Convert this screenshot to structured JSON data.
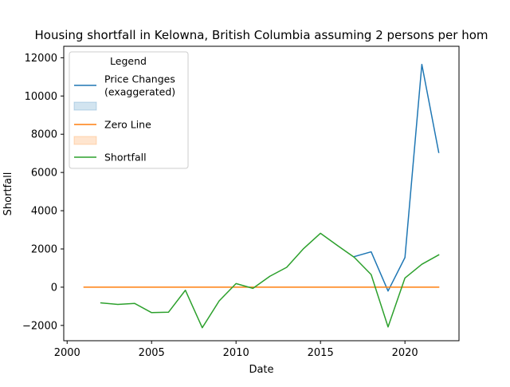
{
  "chart_data": {
    "type": "line",
    "title": "Housing shortfall in Kelowna, British Columbia assuming 2 persons per hom",
    "xlabel": "Date",
    "ylabel": "Shortfall",
    "xlim": [
      1999.8,
      2023.2
    ],
    "ylim": [
      -2800,
      12600
    ],
    "x_ticks": [
      2000,
      2005,
      2010,
      2015,
      2020
    ],
    "y_ticks": [
      -2000,
      0,
      2000,
      4000,
      6000,
      8000,
      10000,
      12000
    ],
    "grid": false,
    "legend": {
      "title": "Legend",
      "placement": "top-left",
      "entries": [
        {
          "kind": "line",
          "label_lines": [
            "Price Changes",
            "(exaggerated)"
          ],
          "color": "#1f77b4"
        },
        {
          "kind": "patch",
          "label_lines": [],
          "color": "#1f77b4"
        },
        {
          "kind": "line",
          "label_lines": [
            "Zero Line"
          ],
          "color": "#ff7f0e"
        },
        {
          "kind": "patch",
          "label_lines": [],
          "color": "#ff7f0e"
        },
        {
          "kind": "line",
          "label_lines": [
            "Shortfall"
          ],
          "color": "#2ca02c"
        }
      ]
    },
    "series": [
      {
        "name": "Price Changes (exaggerated)",
        "color": "#1f77b4",
        "x": [
          2017,
          2018,
          2019,
          2020,
          2021,
          2022
        ],
        "y": [
          1600,
          1850,
          -200,
          1550,
          11650,
          7050
        ]
      },
      {
        "name": "Zero Line",
        "color": "#ff7f0e",
        "x": [
          2001,
          2022
        ],
        "y": [
          0,
          0
        ]
      },
      {
        "name": "Shortfall",
        "color": "#2ca02c",
        "x": [
          2002,
          2003,
          2004,
          2005,
          2006,
          2007,
          2008,
          2009,
          2010,
          2011,
          2012,
          2013,
          2014,
          2015,
          2016,
          2017,
          2018,
          2019,
          2020,
          2021,
          2022
        ],
        "y": [
          -820,
          -900,
          -850,
          -1330,
          -1310,
          -160,
          -2120,
          -720,
          190,
          -60,
          570,
          1040,
          2020,
          2820,
          2180,
          1560,
          660,
          -2080,
          480,
          1200,
          1690
        ]
      }
    ]
  }
}
